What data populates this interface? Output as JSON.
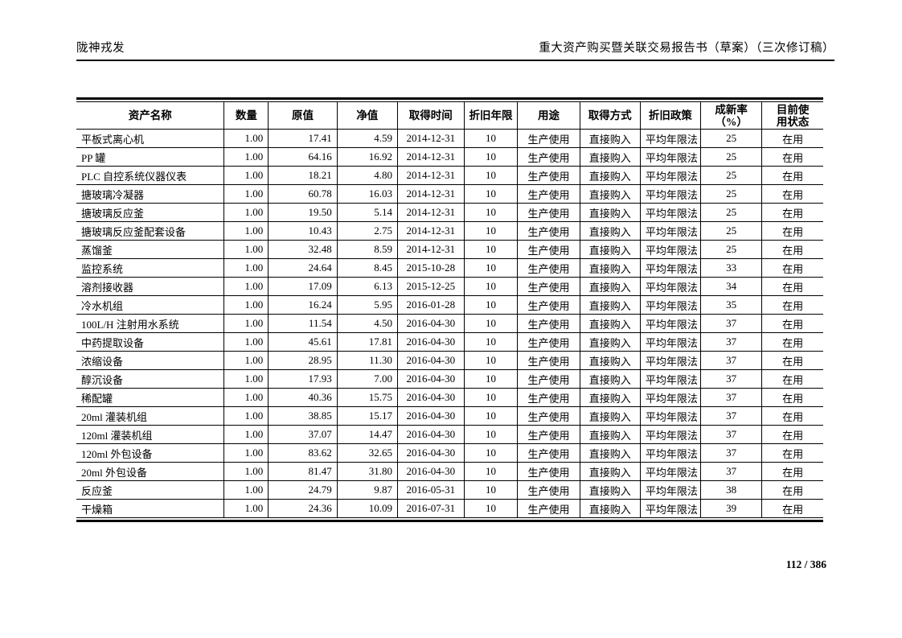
{
  "page": {
    "header_left": "陇神戎发",
    "header_right": "重大资产购买暨关联交易报告书（草案）（三次修订稿）",
    "page_number": "112 / 386"
  },
  "table": {
    "columns": [
      {
        "label": "资产名称"
      },
      {
        "label": "数量"
      },
      {
        "label": "原值"
      },
      {
        "label": "净值"
      },
      {
        "label": "取得时间"
      },
      {
        "label": "折旧年限"
      },
      {
        "label": "用途"
      },
      {
        "label": "取得方式"
      },
      {
        "label": "折旧政策"
      },
      {
        "label": "成新率\n（%）"
      },
      {
        "label": "目前使\n用状态"
      }
    ],
    "rows": [
      [
        "平板式离心机",
        "1.00",
        "17.41",
        "4.59",
        "2014-12-31",
        "10",
        "生产使用",
        "直接购入",
        "平均年限法",
        "25",
        "在用"
      ],
      [
        "PP 罐",
        "1.00",
        "64.16",
        "16.92",
        "2014-12-31",
        "10",
        "生产使用",
        "直接购入",
        "平均年限法",
        "25",
        "在用"
      ],
      [
        "PLC 自控系统仪器仪表",
        "1.00",
        "18.21",
        "4.80",
        "2014-12-31",
        "10",
        "生产使用",
        "直接购入",
        "平均年限法",
        "25",
        "在用"
      ],
      [
        "搪玻璃冷凝器",
        "1.00",
        "60.78",
        "16.03",
        "2014-12-31",
        "10",
        "生产使用",
        "直接购入",
        "平均年限法",
        "25",
        "在用"
      ],
      [
        "搪玻璃反应釜",
        "1.00",
        "19.50",
        "5.14",
        "2014-12-31",
        "10",
        "生产使用",
        "直接购入",
        "平均年限法",
        "25",
        "在用"
      ],
      [
        "搪玻璃反应釜配套设备",
        "1.00",
        "10.43",
        "2.75",
        "2014-12-31",
        "10",
        "生产使用",
        "直接购入",
        "平均年限法",
        "25",
        "在用"
      ],
      [
        "蒸馏釜",
        "1.00",
        "32.48",
        "8.59",
        "2014-12-31",
        "10",
        "生产使用",
        "直接购入",
        "平均年限法",
        "25",
        "在用"
      ],
      [
        "监控系统",
        "1.00",
        "24.64",
        "8.45",
        "2015-10-28",
        "10",
        "生产使用",
        "直接购入",
        "平均年限法",
        "33",
        "在用"
      ],
      [
        "溶剂接收器",
        "1.00",
        "17.09",
        "6.13",
        "2015-12-25",
        "10",
        "生产使用",
        "直接购入",
        "平均年限法",
        "34",
        "在用"
      ],
      [
        "冷水机组",
        "1.00",
        "16.24",
        "5.95",
        "2016-01-28",
        "10",
        "生产使用",
        "直接购入",
        "平均年限法",
        "35",
        "在用"
      ],
      [
        "100L/H 注射用水系统",
        "1.00",
        "11.54",
        "4.50",
        "2016-04-30",
        "10",
        "生产使用",
        "直接购入",
        "平均年限法",
        "37",
        "在用"
      ],
      [
        "中药提取设备",
        "1.00",
        "45.61",
        "17.81",
        "2016-04-30",
        "10",
        "生产使用",
        "直接购入",
        "平均年限法",
        "37",
        "在用"
      ],
      [
        "浓缩设备",
        "1.00",
        "28.95",
        "11.30",
        "2016-04-30",
        "10",
        "生产使用",
        "直接购入",
        "平均年限法",
        "37",
        "在用"
      ],
      [
        "醇沉设备",
        "1.00",
        "17.93",
        "7.00",
        "2016-04-30",
        "10",
        "生产使用",
        "直接购入",
        "平均年限法",
        "37",
        "在用"
      ],
      [
        "稀配罐",
        "1.00",
        "40.36",
        "15.75",
        "2016-04-30",
        "10",
        "生产使用",
        "直接购入",
        "平均年限法",
        "37",
        "在用"
      ],
      [
        "20ml 灌装机组",
        "1.00",
        "38.85",
        "15.17",
        "2016-04-30",
        "10",
        "生产使用",
        "直接购入",
        "平均年限法",
        "37",
        "在用"
      ],
      [
        "120ml 灌装机组",
        "1.00",
        "37.07",
        "14.47",
        "2016-04-30",
        "10",
        "生产使用",
        "直接购入",
        "平均年限法",
        "37",
        "在用"
      ],
      [
        "120ml 外包设备",
        "1.00",
        "83.62",
        "32.65",
        "2016-04-30",
        "10",
        "生产使用",
        "直接购入",
        "平均年限法",
        "37",
        "在用"
      ],
      [
        "20ml 外包设备",
        "1.00",
        "81.47",
        "31.80",
        "2016-04-30",
        "10",
        "生产使用",
        "直接购入",
        "平均年限法",
        "37",
        "在用"
      ],
      [
        "反应釜",
        "1.00",
        "24.79",
        "9.87",
        "2016-05-31",
        "10",
        "生产使用",
        "直接购入",
        "平均年限法",
        "38",
        "在用"
      ],
      [
        "干燥箱",
        "1.00",
        "24.36",
        "10.09",
        "2016-07-31",
        "10",
        "生产使用",
        "直接购入",
        "平均年限法",
        "39",
        "在用"
      ]
    ]
  }
}
